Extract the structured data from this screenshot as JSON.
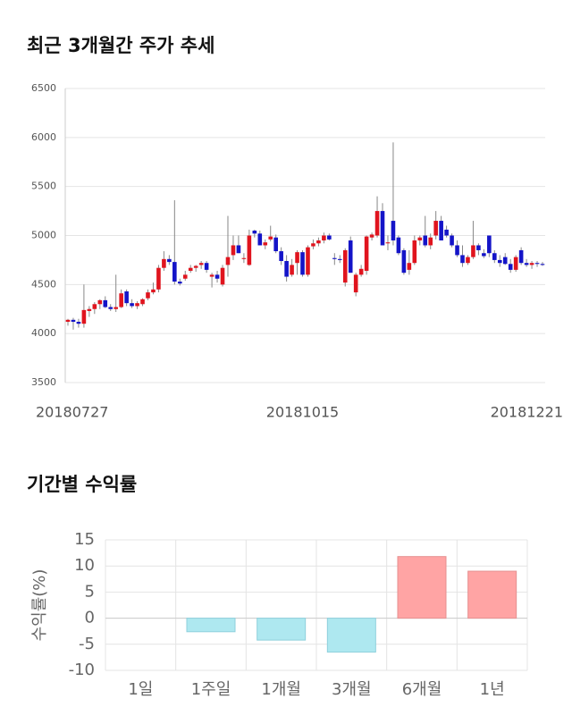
{
  "chart_data": [
    {
      "type": "candlestick",
      "title": "최근 3개월간 주가 추세",
      "categories": [
        "20180727",
        null,
        null,
        null,
        null,
        null,
        null,
        null,
        null,
        null,
        null,
        null,
        null,
        null,
        null,
        null,
        null,
        null,
        null,
        null,
        null,
        null,
        null,
        null,
        null,
        null,
        null,
        null,
        null,
        null,
        null,
        null,
        null,
        null,
        null,
        null,
        null,
        null,
        null,
        null,
        null,
        null,
        null,
        null,
        "20181015",
        null,
        null,
        null,
        null,
        null,
        null,
        null,
        null,
        null,
        null,
        null,
        null,
        null,
        null,
        null,
        null,
        null,
        null,
        null,
        null,
        null,
        null,
        null,
        null,
        null,
        null,
        null,
        null,
        null,
        null,
        null,
        null,
        null,
        null,
        null,
        null,
        null,
        null,
        null,
        null,
        null,
        null,
        null,
        null,
        "20181221"
      ],
      "open": [
        4120,
        4140,
        4120,
        4100,
        4230,
        4250,
        4300,
        4340,
        4270,
        4250,
        4270,
        4430,
        4310,
        4280,
        4300,
        4360,
        4420,
        4450,
        4670,
        4760,
        4730,
        4530,
        4560,
        4640,
        4670,
        4700,
        4720,
        4580,
        4600,
        4500,
        4700,
        4800,
        4900,
        4760,
        4700,
        5050,
        5020,
        4900,
        4960,
        4980,
        4840,
        4740,
        4600,
        4720,
        4830,
        4600,
        4890,
        4920,
        4950,
        5000,
        4770,
        4760,
        4520,
        4950,
        4420,
        4600,
        4640,
        4980,
        5000,
        5250,
        4920,
        5150,
        4980,
        4850,
        4650,
        4720,
        4950,
        5000,
        4900,
        5000,
        5150,
        5060,
        5000,
        4900,
        4800,
        4720,
        4780,
        4900,
        4820,
        5000,
        4820,
        4750,
        4780,
        4710,
        4650,
        4850,
        4720,
        4700,
        4720,
        4710
      ],
      "high": [
        4150,
        4160,
        4150,
        4500,
        4280,
        4320,
        4350,
        4380,
        4300,
        4600,
        4450,
        4450,
        4350,
        4330,
        4360,
        4450,
        4520,
        4700,
        4840,
        4800,
        5360,
        4560,
        4640,
        4700,
        4700,
        4740,
        4740,
        4620,
        4640,
        4700,
        5200,
        5000,
        5000,
        4820,
        5060,
        5060,
        5050,
        4960,
        5100,
        5010,
        4880,
        4800,
        4760,
        4850,
        4850,
        4900,
        4960,
        4980,
        5030,
        5020,
        4820,
        4800,
        4870,
        4990,
        4620,
        4700,
        5000,
        5030,
        5400,
        5330,
        5000,
        5950,
        5000,
        4870,
        4850,
        5000,
        5000,
        5200,
        5020,
        5250,
        5200,
        5100,
        5020,
        4950,
        4900,
        4800,
        5150,
        4920,
        4860,
        5000,
        4850,
        4800,
        4820,
        4760,
        4800,
        4880,
        4760,
        4740,
        4740,
        4730
      ],
      "low": [
        4080,
        4040,
        4060,
        4060,
        4170,
        4200,
        4250,
        4260,
        4230,
        4220,
        4260,
        4280,
        4260,
        4250,
        4280,
        4340,
        4400,
        4420,
        4640,
        4700,
        4500,
        4490,
        4540,
        4620,
        4630,
        4660,
        4620,
        4470,
        4520,
        4480,
        4580,
        4750,
        4820,
        4720,
        4690,
        4980,
        4900,
        4860,
        4940,
        4820,
        4700,
        4530,
        4580,
        4600,
        4580,
        4580,
        4860,
        4890,
        4920,
        4950,
        4700,
        4720,
        4480,
        4620,
        4380,
        4580,
        4600,
        4950,
        4980,
        4900,
        4850,
        4900,
        4800,
        4600,
        4600,
        4700,
        4900,
        4880,
        4860,
        4960,
        4950,
        4980,
        4880,
        4780,
        4680,
        4700,
        4760,
        4800,
        4770,
        4780,
        4720,
        4680,
        4700,
        4620,
        4630,
        4700,
        4680,
        4660,
        4680,
        4690
      ],
      "close": [
        4140,
        4120,
        4100,
        4240,
        4250,
        4300,
        4340,
        4270,
        4250,
        4270,
        4410,
        4310,
        4280,
        4310,
        4350,
        4420,
        4450,
        4670,
        4760,
        4730,
        4530,
        4510,
        4600,
        4670,
        4690,
        4720,
        4650,
        4600,
        4560,
        4670,
        4780,
        4900,
        4820,
        4770,
        5000,
        5020,
        4900,
        4930,
        4990,
        4840,
        4740,
        4580,
        4700,
        4830,
        4600,
        4880,
        4920,
        4950,
        5000,
        4960,
        4760,
        4750,
        4850,
        4620,
        4600,
        4660,
        4990,
        5010,
        5250,
        4900,
        4930,
        4950,
        4820,
        4620,
        4720,
        4950,
        4980,
        4900,
        4980,
        5150,
        4950,
        5000,
        4900,
        4800,
        4720,
        4780,
        4900,
        4850,
        4790,
        4820,
        4750,
        4720,
        4710,
        4650,
        4780,
        4720,
        4700,
        4720,
        4710,
        4700
      ],
      "up_color": "#e0141e",
      "down_color": "#1414c8",
      "ylim": [
        3500,
        6500
      ],
      "yticks": [
        3500,
        4000,
        4500,
        5000,
        5500,
        6000,
        6500
      ],
      "grid": true
    },
    {
      "type": "bar",
      "title": "기간별 수익률",
      "ylabel": "수익률(%)",
      "categories": [
        "1일",
        "1주일",
        "1개월",
        "3개월",
        "6개월",
        "1년"
      ],
      "values": [
        0,
        -2.6,
        -4.2,
        -6.5,
        11.8,
        9.0
      ],
      "positive_color": "#ffa4a4",
      "negative_color": "#aee8f0",
      "ylim": [
        -10,
        15
      ],
      "yticks": [
        -10,
        -5,
        0,
        5,
        10,
        15
      ],
      "grid": true
    }
  ]
}
